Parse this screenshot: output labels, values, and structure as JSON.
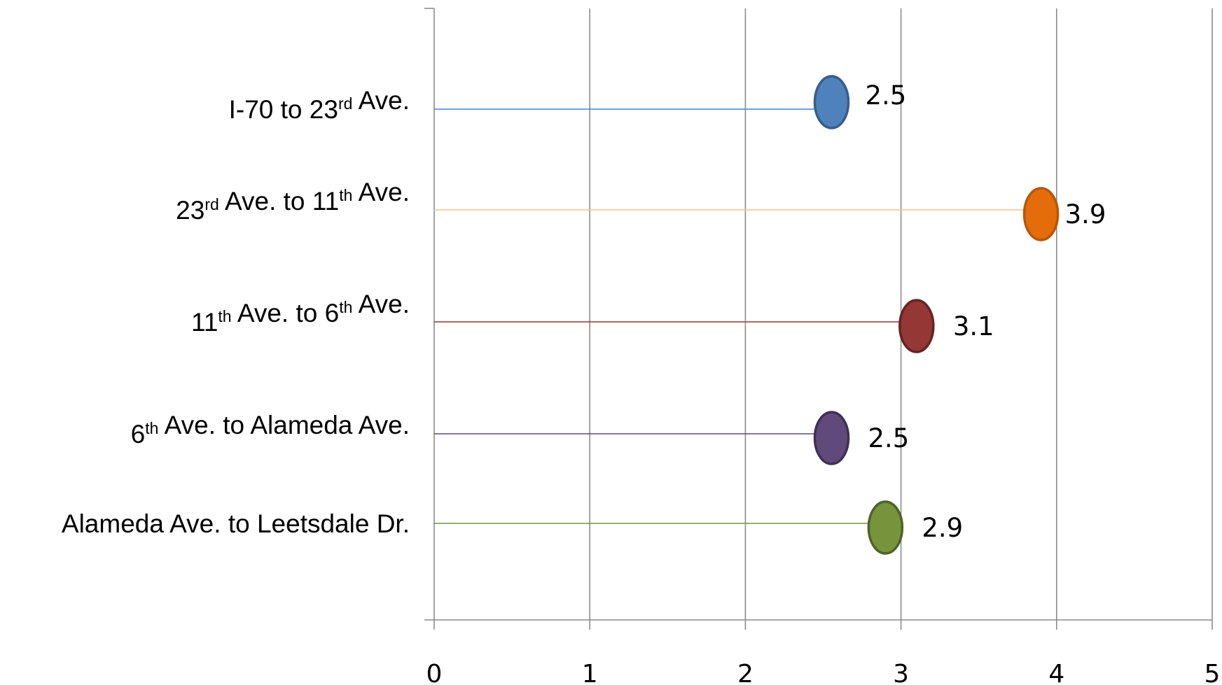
{
  "chart_data": {
    "type": "scatter",
    "orientation": "horizontal-lollipop",
    "title": "",
    "xlabel": "",
    "ylabel": "",
    "xlim": [
      0,
      5
    ],
    "xticks": [
      "0",
      "1",
      "2",
      "3",
      "4",
      "5"
    ],
    "grid": "vertical",
    "legend": "none",
    "categories": [
      {
        "parts": [
          [
            "I-70 to 23",
            ""
          ],
          [
            "rd",
            "sup"
          ],
          [
            " Ave.",
            ""
          ]
        ],
        "value": 2.5,
        "value_label": "2.5",
        "color": "#4f81bd",
        "stroke": "#385d8a"
      },
      {
        "parts": [
          [
            "23",
            ""
          ],
          [
            "rd",
            "sup"
          ],
          [
            " Ave. to 11",
            ""
          ],
          [
            "th",
            "sup"
          ],
          [
            " Ave.",
            ""
          ]
        ],
        "value": 3.9,
        "value_label": "3.9",
        "color": "#e46c0a",
        "stroke": "#b65708"
      },
      {
        "parts": [
          [
            "11",
            ""
          ],
          [
            "th",
            "sup"
          ],
          [
            " Ave. to 6",
            ""
          ],
          [
            "th",
            "sup"
          ],
          [
            " Ave.",
            ""
          ]
        ],
        "value": 3.1,
        "value_label": "3.1",
        "color": "#953735",
        "stroke": "#632523"
      },
      {
        "parts": [
          [
            "6",
            ""
          ],
          [
            "th",
            "sup"
          ],
          [
            " Ave. to Alameda Ave.",
            ""
          ]
        ],
        "value": 2.5,
        "value_label": "2.5",
        "color": "#604a7b",
        "stroke": "#3f3151"
      },
      {
        "parts": [
          [
            "Alameda Ave. to Leetsdale Dr.",
            ""
          ]
        ],
        "value": 2.9,
        "value_label": "2.9",
        "color": "#77933c",
        "stroke": "#4f6228"
      }
    ],
    "line_colors": [
      "#4f81bd",
      "#fac090",
      "#953735",
      "#604a7b",
      "#77933c"
    ]
  }
}
